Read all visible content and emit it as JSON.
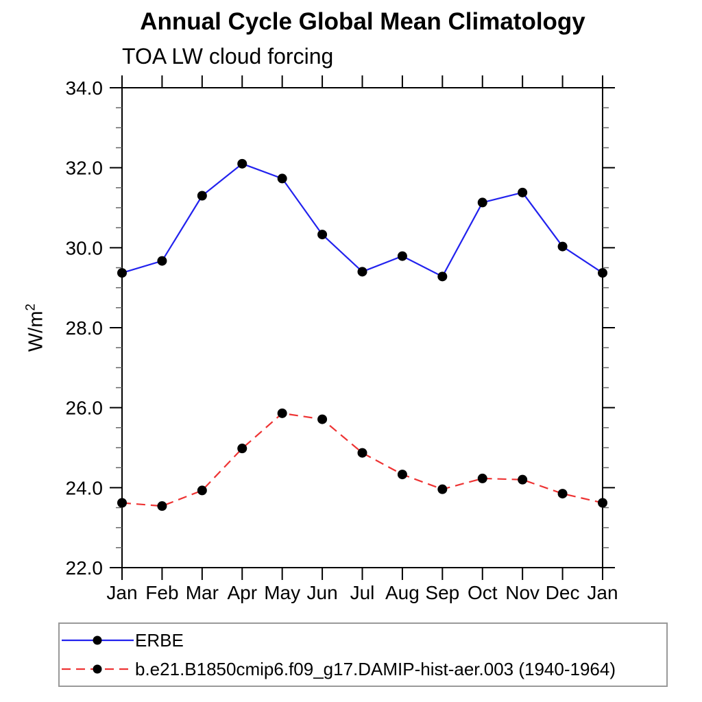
{
  "page": {
    "background": "#ffffff"
  },
  "chart_data": {
    "type": "line",
    "title": "Annual Cycle Global Mean Climatology",
    "subtitle": "TOA LW cloud forcing",
    "ylabel_base": "W/m",
    "ylabel_exponent": "2",
    "ylabel": "W/m2",
    "x_tick_labels": [
      "Jan",
      "Feb",
      "Mar",
      "Apr",
      "May",
      "Jun",
      "Jul",
      "Aug",
      "Sep",
      "Oct",
      "Nov",
      "Dec",
      "Jan"
    ],
    "y_tick_labels": [
      "22.0",
      "24.0",
      "26.0",
      "28.0",
      "30.0",
      "32.0",
      "34.0"
    ],
    "ylim": [
      22.0,
      34.0
    ],
    "y_major_step": 2.0,
    "y_minor_step": 0.5,
    "grid": false,
    "legend_position": "bottom-left-box",
    "axis_color": "#000000",
    "minor_tick_color": "#666666",
    "marker": "filled-circle",
    "marker_color": "#000000",
    "series": [
      {
        "name": "ERBE",
        "color": "#2222ee",
        "style": "solid",
        "values": [
          29.37,
          29.67,
          31.3,
          32.1,
          31.73,
          30.33,
          29.4,
          29.79,
          29.28,
          31.13,
          31.38,
          30.03,
          29.37
        ]
      },
      {
        "name": "b.e21.B1850cmip6.f09_g17.DAMIP-hist-aer.003 (1940-1964)",
        "color": "#ee3333",
        "style": "dashed",
        "values": [
          23.62,
          23.54,
          23.93,
          24.98,
          25.86,
          25.71,
          24.87,
          24.33,
          23.96,
          24.23,
          24.2,
          23.85,
          23.62
        ]
      }
    ]
  }
}
